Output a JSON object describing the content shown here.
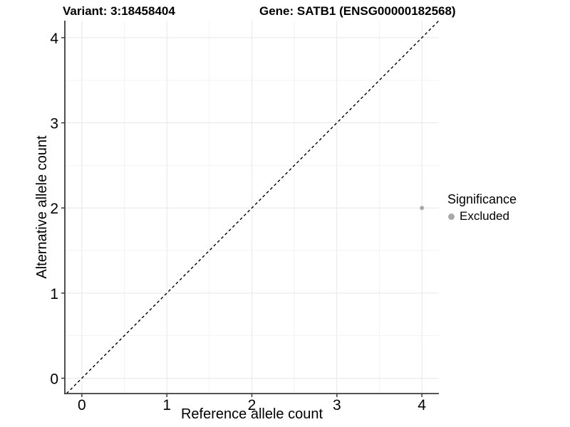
{
  "chart_data": {
    "type": "scatter",
    "titles": {
      "left": "Variant: 3:18458404",
      "right": "Gene: SATB1 (ENSG00000182568)"
    },
    "xlabel": "Reference allele count",
    "ylabel": "Alternative allele count",
    "xlim": [
      -0.2,
      4.2
    ],
    "ylim": [
      -0.18,
      4.2
    ],
    "xticks": [
      0,
      1,
      2,
      3,
      4
    ],
    "yticks": [
      0,
      1,
      2,
      3,
      4
    ],
    "xticks_minor": [
      0.5,
      1.5,
      2.5,
      3.5
    ],
    "yticks_minor": [
      0.5,
      1.5,
      2.5,
      3.5
    ],
    "grid": "on",
    "identity_line": {
      "slope": 1,
      "intercept": 0,
      "style": "dashed",
      "color": "#000000"
    },
    "series": [
      {
        "name": "Excluded",
        "color": "#aaaaaa",
        "points": [
          {
            "x": 4,
            "y": 2
          }
        ]
      }
    ],
    "point_radius": 3,
    "legend": {
      "title": "Significance",
      "position": "right",
      "items": [
        {
          "label": "Excluded",
          "color": "#a8a8a8"
        }
      ]
    },
    "colors": {
      "background": "#ffffff",
      "grid_major": "#e7e7e7",
      "grid_minor": "#f3f3f3",
      "axis": "#3c3c3c",
      "text": "#000000"
    }
  }
}
